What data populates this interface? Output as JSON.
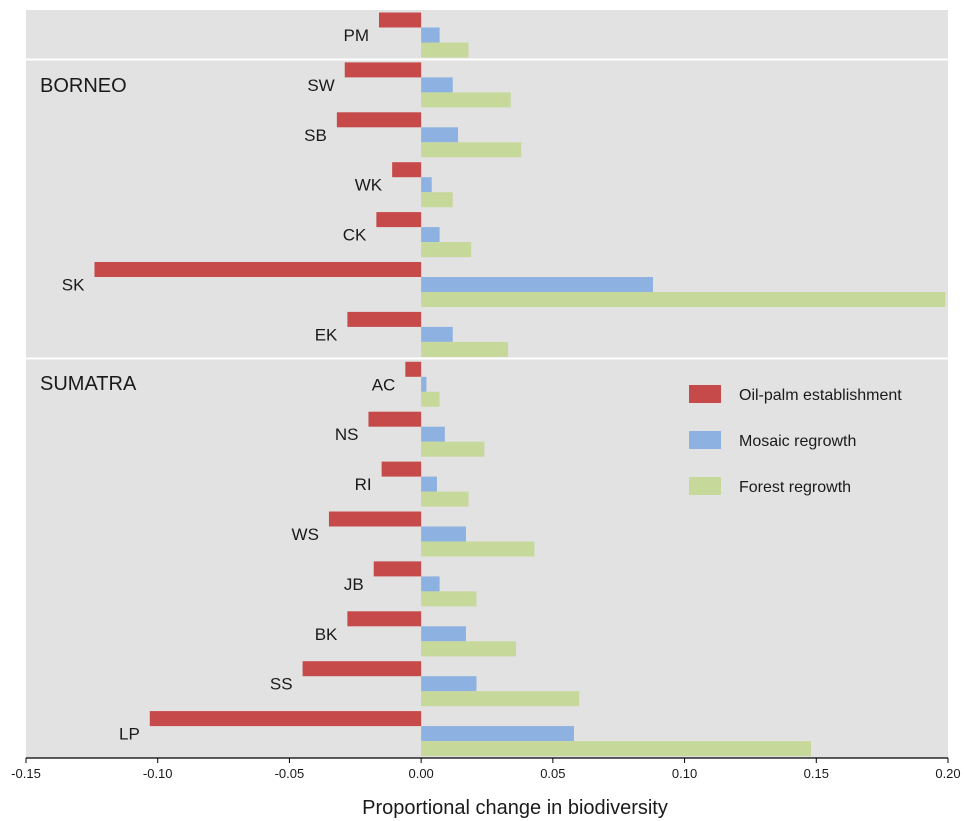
{
  "chart_data": {
    "type": "bar",
    "orientation": "horizontal",
    "xlabel": "Proportional change in biodiversity",
    "xlim": [
      -0.15,
      0.2
    ],
    "xticks": [
      "-0.15",
      "-0.10",
      "-0.05",
      "0.00",
      "0.05",
      "0.10",
      "0.15",
      "0.20"
    ],
    "xtick_values": [
      -0.15,
      -0.1,
      -0.05,
      0.0,
      0.05,
      0.1,
      0.15,
      0.2
    ],
    "grid": false,
    "legend_position": "right",
    "background_color": "#e2e2e2",
    "series": [
      {
        "name": "Oil-palm establishment",
        "color": "#c64a4a"
      },
      {
        "name": "Mosaic regrowth",
        "color": "#8db1e0"
      },
      {
        "name": "Forest regrowth",
        "color": "#c7d89b"
      }
    ],
    "groups": [
      {
        "label": "",
        "categories": [
          {
            "name": "PM",
            "values": [
              -0.016,
              0.007,
              0.018
            ]
          }
        ]
      },
      {
        "label": "BORNEO",
        "categories": [
          {
            "name": "SW",
            "values": [
              -0.029,
              0.012,
              0.034
            ]
          },
          {
            "name": "SB",
            "values": [
              -0.032,
              0.014,
              0.038
            ]
          },
          {
            "name": "WK",
            "values": [
              -0.011,
              0.004,
              0.012
            ]
          },
          {
            "name": "CK",
            "values": [
              -0.017,
              0.007,
              0.019
            ]
          },
          {
            "name": "SK",
            "values": [
              -0.124,
              0.088,
              0.199
            ]
          },
          {
            "name": "EK",
            "values": [
              -0.028,
              0.012,
              0.033
            ]
          }
        ]
      },
      {
        "label": "SUMATRA",
        "categories": [
          {
            "name": "AC",
            "values": [
              -0.006,
              0.002,
              0.007
            ]
          },
          {
            "name": "NS",
            "values": [
              -0.02,
              0.009,
              0.024
            ]
          },
          {
            "name": "RI",
            "values": [
              -0.015,
              0.006,
              0.018
            ]
          },
          {
            "name": "WS",
            "values": [
              -0.035,
              0.017,
              0.043
            ]
          },
          {
            "name": "JB",
            "values": [
              -0.018,
              0.007,
              0.021
            ]
          },
          {
            "name": "BK",
            "values": [
              -0.028,
              0.017,
              0.036
            ]
          },
          {
            "name": "SS",
            "values": [
              -0.045,
              0.021,
              0.06
            ]
          },
          {
            "name": "LP",
            "values": [
              -0.103,
              0.058,
              0.148
            ]
          }
        ]
      }
    ]
  }
}
